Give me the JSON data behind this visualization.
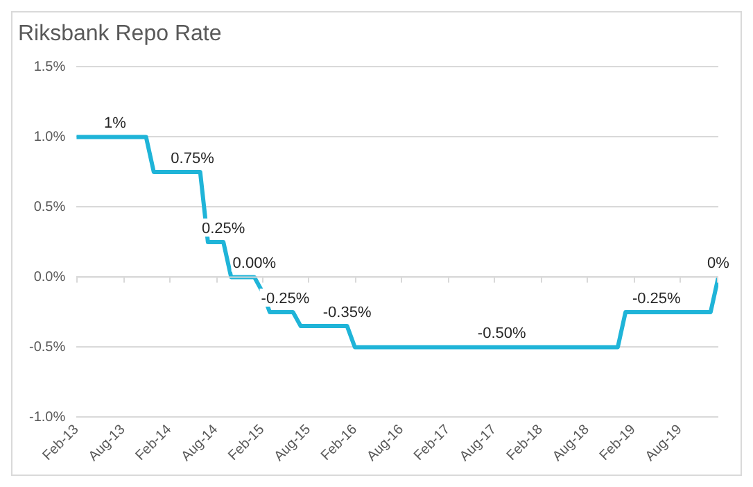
{
  "chart_data": {
    "type": "line",
    "title": "Riksbank Repo Rate",
    "x": [
      "2013-02",
      "2013-11",
      "2013-12",
      "2014-06",
      "2014-07",
      "2014-09",
      "2014-10",
      "2015-01",
      "2015-02",
      "2015-03",
      "2015-06",
      "2015-07",
      "2016-01",
      "2016-02",
      "2018-12",
      "2019-01",
      "2019-12",
      "2020-01"
    ],
    "series": [
      {
        "color": "#1fb4d8",
        "values": [
          1,
          1,
          0.75,
          0.75,
          0.25,
          0.25,
          0,
          0,
          -0.1,
          -0.25,
          -0.25,
          -0.35,
          -0.35,
          -0.5,
          -0.5,
          -0.25,
          -0.25,
          0
        ]
      }
    ],
    "xlim": [
      "2013-02",
      "2020-01"
    ],
    "xticks": [
      {
        "value": "2013-02",
        "label": "Feb-13"
      },
      {
        "value": "2013-08",
        "label": "Aug-13"
      },
      {
        "value": "2014-02",
        "label": "Feb-14"
      },
      {
        "value": "2014-08",
        "label": "Aug-14"
      },
      {
        "value": "2015-02",
        "label": "Feb-15"
      },
      {
        "value": "2015-08",
        "label": "Aug-15"
      },
      {
        "value": "2016-02",
        "label": "Feb-16"
      },
      {
        "value": "2016-08",
        "label": "Aug-16"
      },
      {
        "value": "2017-02",
        "label": "Feb-17"
      },
      {
        "value": "2017-08",
        "label": "Aug-17"
      },
      {
        "value": "2018-02",
        "label": "Feb-18"
      },
      {
        "value": "2018-08",
        "label": "Aug-18"
      },
      {
        "value": "2019-02",
        "label": "Feb-19"
      },
      {
        "value": "2019-08",
        "label": "Aug-19"
      }
    ],
    "ylim": [
      -1,
      1.5
    ],
    "yticks": [
      {
        "value": -1,
        "label": "-1.0%"
      },
      {
        "value": -0.5,
        "label": "-0.5%"
      },
      {
        "value": 0,
        "label": "0.0%"
      },
      {
        "value": 0.5,
        "label": "0.5%"
      },
      {
        "value": 1,
        "label": "1.0%"
      },
      {
        "value": 1.5,
        "label": "1.5%"
      }
    ],
    "grid": "y",
    "legend": false,
    "marker": "none",
    "line_style": "solid",
    "annotations": [
      {
        "text": "1%",
        "x": "2013-07",
        "y": 1
      },
      {
        "text": "0.75%",
        "x": "2014-05",
        "y": 0.75
      },
      {
        "text": "0.25%",
        "x": "2014-09",
        "y": 0.25
      },
      {
        "text": "0.00%",
        "x": "2015-01",
        "y": 0
      },
      {
        "text": "-0.25%",
        "x": "2015-05",
        "y": -0.25
      },
      {
        "text": "-0.35%",
        "x": "2016-01",
        "y": -0.35
      },
      {
        "text": "-0.50%",
        "x": "2017-09",
        "y": -0.5
      },
      {
        "text": "-0.25%",
        "x": "2019-05",
        "y": -0.25
      },
      {
        "text": "0%",
        "x": "2020-01",
        "y": 0
      }
    ]
  }
}
